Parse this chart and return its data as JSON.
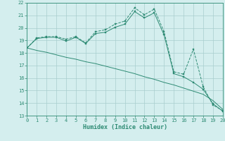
{
  "xlabel": "Humidex (Indice chaleur)",
  "x_values": [
    0,
    1,
    2,
    3,
    4,
    5,
    6,
    7,
    8,
    9,
    10,
    11,
    12,
    13,
    14,
    15,
    16,
    17,
    18,
    19,
    20
  ],
  "line1_y": [
    18.4,
    19.2,
    19.3,
    19.3,
    19.1,
    19.3,
    18.8,
    19.7,
    19.85,
    20.3,
    20.55,
    21.6,
    21.05,
    21.5,
    19.7,
    16.5,
    16.3,
    18.3,
    15.3,
    13.85,
    13.4
  ],
  "line2_y": [
    18.4,
    19.15,
    19.25,
    19.25,
    18.95,
    19.25,
    18.75,
    19.55,
    19.65,
    20.05,
    20.3,
    21.3,
    20.8,
    21.2,
    19.45,
    16.35,
    16.1,
    15.65,
    15.1,
    13.95,
    13.35
  ],
  "regression_y": [
    18.4,
    18.2,
    18.05,
    17.85,
    17.65,
    17.5,
    17.3,
    17.15,
    16.95,
    16.75,
    16.55,
    16.35,
    16.1,
    15.9,
    15.65,
    15.45,
    15.2,
    14.95,
    14.7,
    14.2,
    13.5
  ],
  "ylim": [
    13,
    22
  ],
  "xlim": [
    0,
    20
  ],
  "yticks": [
    13,
    14,
    15,
    16,
    17,
    18,
    19,
    20,
    21,
    22
  ],
  "xticks": [
    0,
    1,
    2,
    3,
    4,
    5,
    6,
    7,
    8,
    9,
    10,
    11,
    12,
    13,
    14,
    15,
    16,
    17,
    18,
    19,
    20
  ],
  "line_color": "#2e8b74",
  "bg_color": "#d4eeee",
  "grid_color": "#a8cece"
}
